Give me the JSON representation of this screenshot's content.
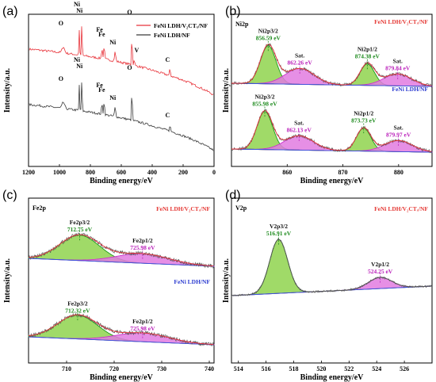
{
  "colors": {
    "red": "#e8333a",
    "dark": "#3a3a3a",
    "green": "#8fd34d",
    "green_line": "#1a9a1a",
    "pink": "#e27be0",
    "pink_line": "#cc33cc",
    "blue": "#3355dd",
    "label_green": "#1d8a1d",
    "label_magenta": "#bb22bb",
    "label_red": "#e53935",
    "label_blue": "#2a3ad0"
  },
  "chart_data": [
    {
      "id": "a",
      "panel_label": "(a)",
      "type": "line",
      "xlabel": "Binding energy/eV",
      "ylabel": "Intensity/a.u.",
      "xlim": [
        1200,
        0
      ],
      "x_reversed": true,
      "xticks": [
        1200,
        1000,
        800,
        600,
        400,
        200,
        0
      ],
      "legend": {
        "placement": "top-right",
        "entries": [
          "FeNi LDH/V₂CTₓ/NF",
          "FeNi LDH/NF"
        ]
      },
      "series": [
        {
          "name": "FeNi LDH/V₂CTₓ/NF",
          "color": "red",
          "offset": 0.52
        },
        {
          "name": "FeNi LDH/NF",
          "color": "dark",
          "offset": 0.0
        }
      ],
      "annotations": [
        {
          "text": "O",
          "x": 975,
          "series": 0
        },
        {
          "text": "Ni",
          "x": 872,
          "series": 0,
          "row": 0
        },
        {
          "text": "Ni",
          "x": 855,
          "series": 0,
          "row": 1
        },
        {
          "text": "Fe",
          "x": 725,
          "series": 0
        },
        {
          "text": "Fe",
          "x": 711,
          "series": 0
        },
        {
          "text": "Ni",
          "x": 640,
          "series": 0
        },
        {
          "text": "O",
          "x": 531,
          "series": 0
        },
        {
          "text": "V",
          "x": 516,
          "series": 0
        },
        {
          "text": "C",
          "x": 285,
          "series": 0
        },
        {
          "text": "O",
          "x": 975,
          "series": 1
        },
        {
          "text": "Ni",
          "x": 872,
          "series": 1,
          "row": 0
        },
        {
          "text": "Ni",
          "x": 855,
          "series": 1,
          "row": 1
        },
        {
          "text": "Fe",
          "x": 725,
          "series": 1
        },
        {
          "text": "Fe",
          "x": 711,
          "series": 1
        },
        {
          "text": "Ni",
          "x": 640,
          "series": 1
        },
        {
          "text": "O",
          "x": 531,
          "series": 1
        },
        {
          "text": "C",
          "x": 285,
          "series": 1
        }
      ]
    },
    {
      "id": "b",
      "panel_label": "(b)",
      "type": "line",
      "title": "Ni2p",
      "xlabel": "Binding energy/eV",
      "ylabel": "Intensity/a.u.",
      "xlim": [
        850,
        886
      ],
      "xticks": [
        860,
        870,
        880
      ],
      "series": [
        {
          "name": "FeNi LDH/V₂CTₓ/NF",
          "peaks": [
            {
              "label": "Ni2p3/2",
              "value": "856.59 eV",
              "center": 856.59,
              "kind": "main"
            },
            {
              "label": "Sat.",
              "value": "862.26 eV",
              "center": 862.26,
              "kind": "sat"
            },
            {
              "label": "Ni2p1/2",
              "value": "874.38 eV",
              "center": 874.38,
              "kind": "main"
            },
            {
              "label": "Sat.",
              "value": "879.84 eV",
              "center": 879.84,
              "kind": "sat"
            }
          ]
        },
        {
          "name": "FeNi LDH/NF",
          "peaks": [
            {
              "label": "Ni2p3/2",
              "value": "855.98 eV",
              "center": 855.98,
              "kind": "main"
            },
            {
              "label": "Sat.",
              "value": "862.13 eV",
              "center": 862.13,
              "kind": "sat"
            },
            {
              "label": "Ni2p1/2",
              "value": "873.73 eV",
              "center": 873.73,
              "kind": "main"
            },
            {
              "label": "Sat.",
              "value": "879.97 eV",
              "center": 879.97,
              "kind": "sat"
            }
          ]
        }
      ]
    },
    {
      "id": "c",
      "panel_label": "(c)",
      "type": "line",
      "title": "Fe2p",
      "xlabel": "Binding energy/eV",
      "ylabel": "Intensity/a.u.",
      "xlim": [
        702,
        741
      ],
      "xticks": [
        710,
        720,
        730,
        740
      ],
      "series": [
        {
          "name": "FeNi LDH/V₂CTₓ/NF",
          "peaks": [
            {
              "label": "Fe2p3/2",
              "value": "712.75 eV",
              "center": 712.75,
              "kind": "main"
            },
            {
              "label": "Fe2p1/2",
              "value": "725.98 eV",
              "center": 725.98,
              "kind": "sat"
            }
          ]
        },
        {
          "name": "FeNi LDH/NF",
          "peaks": [
            {
              "label": "Fe2p3/2",
              "value": "712.32 eV",
              "center": 712.32,
              "kind": "main"
            },
            {
              "label": "Fe2p1/2",
              "value": "725.98 eV",
              "center": 725.98,
              "kind": "sat"
            }
          ]
        }
      ]
    },
    {
      "id": "d",
      "panel_label": "(d)",
      "type": "line",
      "title": "V2p",
      "xlabel": "Binding energy/eV",
      "ylabel": "Intensity/a.u.",
      "xlim": [
        513.5,
        528
      ],
      "xticks": [
        514,
        516,
        518,
        520,
        522,
        524,
        526
      ],
      "series": [
        {
          "name": "FeNi LDH/V₂CTₓ/NF",
          "peaks": [
            {
              "label": "V2p3/2",
              "value": "516.91 eV",
              "center": 516.91,
              "kind": "main"
            },
            {
              "label": "V2p1/2",
              "value": "524.25 eV",
              "center": 524.25,
              "kind": "sat"
            }
          ]
        }
      ]
    }
  ]
}
